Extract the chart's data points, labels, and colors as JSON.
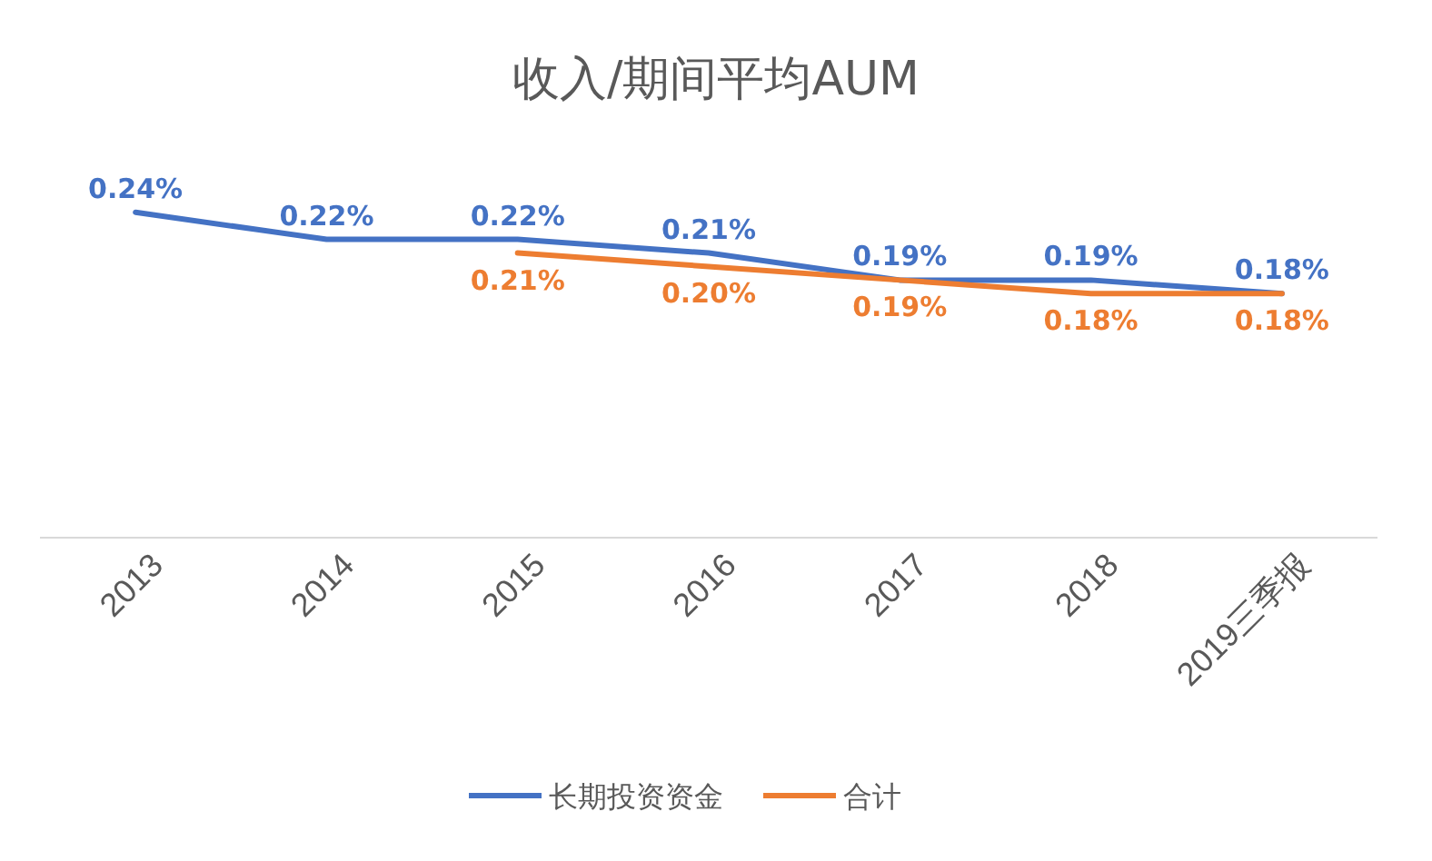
{
  "chart_data": {
    "type": "line",
    "title": "收入/期间平均AUM",
    "categories": [
      "2013",
      "2014",
      "2015",
      "2016",
      "2017",
      "2018",
      "2019三季报"
    ],
    "series": [
      {
        "name": "长期投资资金",
        "color": "#4472c4",
        "values": [
          0.24,
          0.22,
          0.22,
          0.21,
          0.19,
          0.19,
          0.18
        ],
        "value_labels": [
          "0.24%",
          "0.22%",
          "0.22%",
          "0.21%",
          "0.19%",
          "0.19%",
          "0.18%"
        ]
      },
      {
        "name": "合计",
        "color": "#ed7d31",
        "values": [
          null,
          null,
          0.21,
          0.2,
          0.19,
          0.18,
          0.18
        ],
        "value_labels": [
          null,
          null,
          "0.21%",
          "0.20%",
          "0.19%",
          "0.18%",
          "0.18%"
        ]
      }
    ],
    "legend": "bottom",
    "grid": false,
    "marker": "none",
    "line_style": "solid"
  }
}
